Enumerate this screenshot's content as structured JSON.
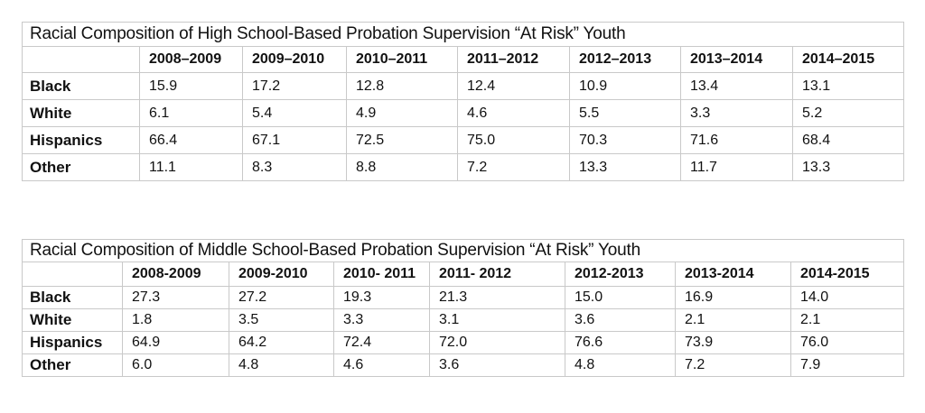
{
  "chart_data": [
    {
      "type": "table",
      "title": "Racial Composition of High School-Based Probation Supervision “At Risk” Youth",
      "columns": [
        "2008–2009",
        "2009–2010",
        "2010–2011",
        "2011–2012",
        "2012–2013",
        "2013–2014",
        "2014–2015"
      ],
      "rows": [
        {
          "label": "Black",
          "values": [
            "15.9",
            "17.2",
            "12.8",
            "12.4",
            "10.9",
            "13.4",
            "13.1"
          ]
        },
        {
          "label": "White",
          "values": [
            "6.1",
            "5.4",
            "4.9",
            "4.6",
            "5.5",
            "3.3",
            "5.2"
          ]
        },
        {
          "label": "Hispanics",
          "values": [
            "66.4",
            "67.1",
            "72.5",
            "75.0",
            "70.3",
            "71.6",
            "68.4"
          ]
        },
        {
          "label": "Other",
          "values": [
            "11.1",
            "8.3",
            "8.8",
            "7.2",
            "13.3",
            "11.7",
            "13.3"
          ]
        }
      ]
    },
    {
      "type": "table",
      "title": "Racial Composition of Middle School-Based Probation Supervision “At Risk” Youth",
      "columns": [
        "2008-2009",
        "2009-2010",
        "2010- 2011",
        "2011- 2012",
        "2012-2013",
        "2013-2014",
        "2014-2015"
      ],
      "rows": [
        {
          "label": "Black",
          "values": [
            "27.3",
            "27.2",
            "19.3",
            "21.3",
            "15.0",
            "16.9",
            "14.0"
          ]
        },
        {
          "label": "White",
          "values": [
            "1.8",
            "3.5",
            "3.3",
            "3.1",
            "3.6",
            "2.1",
            "2.1"
          ]
        },
        {
          "label": "Hispanics",
          "values": [
            "64.9",
            "64.2",
            "72.4",
            "72.0",
            "76.6",
            "73.9",
            "76.0"
          ]
        },
        {
          "label": "Other",
          "values": [
            "6.0",
            "4.8",
            "4.6",
            "3.6",
            "4.8",
            "7.2",
            "7.9"
          ]
        }
      ]
    }
  ]
}
